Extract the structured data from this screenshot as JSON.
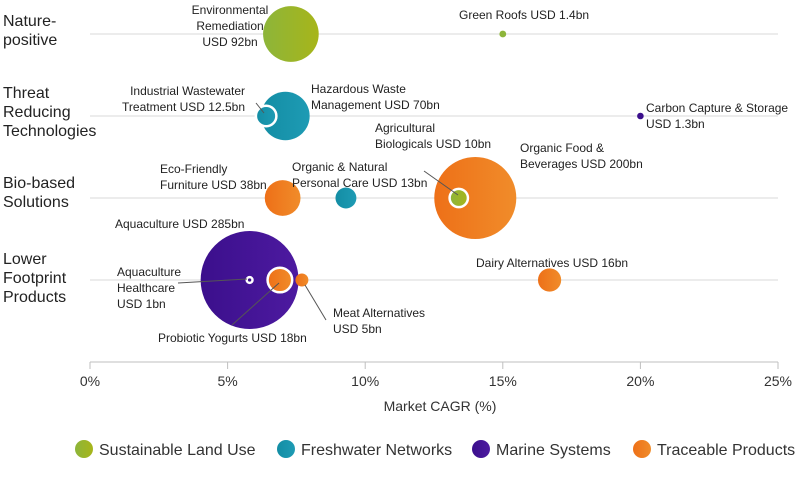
{
  "chart_data": {
    "type": "bubble",
    "xlabel": "Market CAGR (%)",
    "xlim": [
      0,
      25
    ],
    "x_ticks": [
      {
        "value": 0,
        "label": "0%"
      },
      {
        "value": 5,
        "label": "5%"
      },
      {
        "value": 10,
        "label": "10%"
      },
      {
        "value": 15,
        "label": "15%"
      },
      {
        "value": 20,
        "label": "20%"
      },
      {
        "value": 25,
        "label": "25%"
      }
    ],
    "rows": [
      {
        "id": "nature",
        "lines": [
          "Nature-",
          "positive"
        ]
      },
      {
        "id": "threat",
        "lines": [
          "Threat",
          "Reducing",
          "Technologies"
        ]
      },
      {
        "id": "bio",
        "lines": [
          "Bio-based",
          "Solutions"
        ]
      },
      {
        "id": "lower",
        "lines": [
          "Lower",
          "Footprint",
          "Products"
        ]
      }
    ],
    "series": [
      {
        "id": "land",
        "name": "Sustainable Land Use",
        "color": "#8db53a",
        "color2": "#a7b51a"
      },
      {
        "id": "fresh",
        "name": "Freshwater Networks",
        "color": "#138da4",
        "color2": "#1e9bb4"
      },
      {
        "id": "marine",
        "name": "Marine Systems",
        "color": "#3b0f8c",
        "color2": "#4d1aa0"
      },
      {
        "id": "trace",
        "name": "Traceable Products",
        "color": "#ee7018",
        "color2": "#f08c2a"
      }
    ],
    "points": [
      {
        "row": "nature",
        "series": "land",
        "cagr": 7.3,
        "size_bn": 92,
        "lines": [
          "Environmental",
          "Remediation",
          "USD 92bn"
        ]
      },
      {
        "row": "nature",
        "series": "land",
        "cagr": 15.0,
        "size_bn": 1.4,
        "lines": [
          "Green Roofs USD 1.4bn"
        ]
      },
      {
        "row": "threat",
        "series": "fresh",
        "cagr": 6.4,
        "size_bn": 12.5,
        "lines": [
          "Industrial Wastewater",
          "Treatment USD 12.5bn"
        ]
      },
      {
        "row": "threat",
        "series": "fresh",
        "cagr": 7.1,
        "size_bn": 70,
        "lines": [
          "Hazardous Waste",
          "Management USD 70bn"
        ]
      },
      {
        "row": "threat",
        "series": "marine",
        "cagr": 20.0,
        "size_bn": 1.3,
        "lines": [
          "Carbon Capture & Storage",
          "USD 1.3bn"
        ]
      },
      {
        "row": "bio",
        "series": "trace",
        "cagr": 14.0,
        "size_bn": 200,
        "lines": [
          "Organic Food &",
          "Beverages USD 200bn"
        ]
      },
      {
        "row": "bio",
        "series": "land",
        "cagr": 13.4,
        "size_bn": 10,
        "lines": [
          "Agricultural",
          "Biologicals USD 10bn"
        ]
      },
      {
        "row": "bio",
        "series": "trace",
        "cagr": 7.0,
        "size_bn": 38,
        "lines": [
          "Eco-Friendly",
          "Furniture USD 38bn"
        ]
      },
      {
        "row": "bio",
        "series": "fresh",
        "cagr": 9.3,
        "size_bn": 13,
        "lines": [
          "Organic & Natural",
          "Personal Care USD 13bn"
        ]
      },
      {
        "row": "lower",
        "series": "marine",
        "cagr": 5.8,
        "size_bn": 285,
        "lines": [
          "Aquaculture USD 285bn"
        ]
      },
      {
        "row": "lower",
        "series": "trace",
        "cagr": 6.9,
        "size_bn": 18,
        "lines": [
          "Probiotic Yogurts USD 18bn"
        ]
      },
      {
        "row": "lower",
        "series": "marine",
        "cagr": 5.8,
        "size_bn": 1,
        "lines": [
          "Aquaculture",
          "Healthcare",
          "USD 1bn"
        ]
      },
      {
        "row": "lower",
        "series": "trace",
        "cagr": 7.7,
        "size_bn": 5,
        "lines": [
          "Meat Alternatives",
          "USD 5bn"
        ]
      },
      {
        "row": "lower",
        "series": "trace",
        "cagr": 16.7,
        "size_bn": 16,
        "lines": [
          "Dairy Alternatives USD 16bn"
        ]
      }
    ]
  }
}
